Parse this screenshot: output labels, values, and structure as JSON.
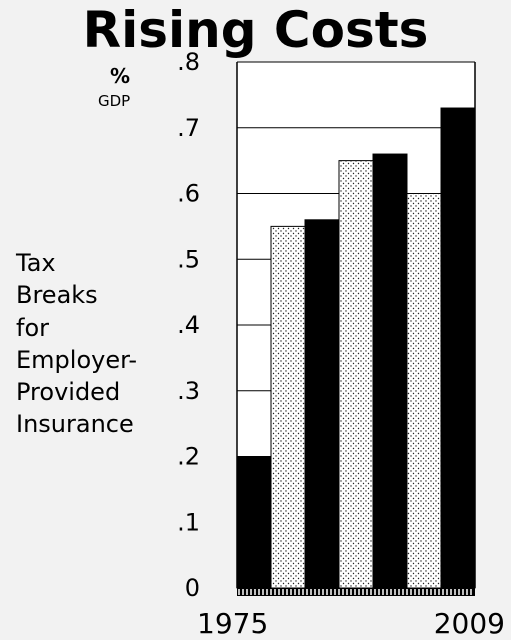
{
  "chart_data": {
    "type": "bar",
    "title": "Rising Costs",
    "unit_line1": "%",
    "unit_line2": "GDP",
    "ylabel_lines": [
      "Tax",
      "Breaks",
      "for",
      "Employer-",
      "Provided",
      "Insurance"
    ],
    "x_start_label": "1975",
    "x_end_label": "2009",
    "values": [
      0.2,
      0.55,
      0.56,
      0.65,
      0.66,
      0.6,
      0.73
    ],
    "bar_fills": [
      "solid",
      "dotted",
      "solid",
      "dotted",
      "solid",
      "dotted",
      "solid"
    ],
    "yticks": [
      "0",
      ".1",
      ".2",
      ".3",
      ".4",
      ".5",
      ".6",
      ".7",
      ".8"
    ],
    "ylim": [
      0,
      0.8
    ],
    "grid": true,
    "colors": {
      "solid": "#000000",
      "dotted_bg": "#ffffff",
      "grid": "#000000"
    }
  }
}
